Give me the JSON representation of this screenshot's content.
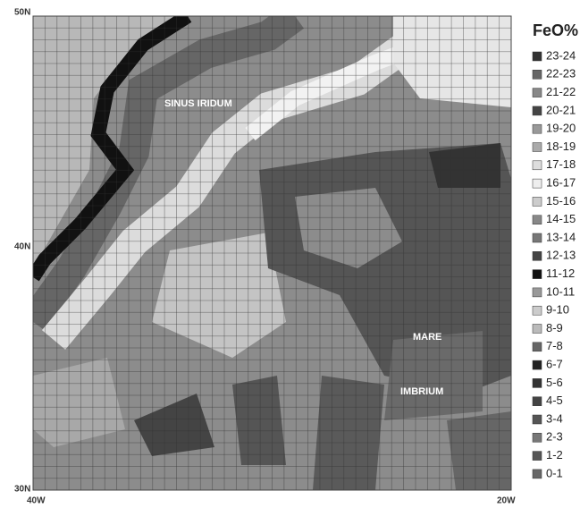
{
  "map": {
    "lat_labels": [
      "50N",
      "40N",
      "30N"
    ],
    "lon_labels": [
      "40W",
      "20W"
    ],
    "region_labels": [
      "SINUS IRIDUM",
      "MARE",
      "IMBRIUM"
    ]
  },
  "legend": {
    "title": "FeO%",
    "items": [
      {
        "label": "23-24",
        "color": "#333333"
      },
      {
        "label": "22-23",
        "color": "#666666"
      },
      {
        "label": "21-22",
        "color": "#888888"
      },
      {
        "label": "20-21",
        "color": "#444444"
      },
      {
        "label": "19-20",
        "color": "#999999"
      },
      {
        "label": "18-19",
        "color": "#aaaaaa"
      },
      {
        "label": "17-18",
        "color": "#dddddd"
      },
      {
        "label": "16-17",
        "color": "#eeeeee"
      },
      {
        "label": "15-16",
        "color": "#cccccc"
      },
      {
        "label": "14-15",
        "color": "#888888"
      },
      {
        "label": "13-14",
        "color": "#777777"
      },
      {
        "label": "12-13",
        "color": "#444444"
      },
      {
        "label": "11-12",
        "color": "#111111"
      },
      {
        "label": "10-11",
        "color": "#999999"
      },
      {
        "label": "9-10",
        "color": "#cccccc"
      },
      {
        "label": "8-9",
        "color": "#bbbbbb"
      },
      {
        "label": "7-8",
        "color": "#666666"
      },
      {
        "label": "6-7",
        "color": "#222222"
      },
      {
        "label": "5-6",
        "color": "#333333"
      },
      {
        "label": "4-5",
        "color": "#444444"
      },
      {
        "label": "3-4",
        "color": "#555555"
      },
      {
        "label": "2-3",
        "color": "#777777"
      },
      {
        "label": "1-2",
        "color": "#555555"
      },
      {
        "label": "0-1",
        "color": "#666666"
      }
    ]
  }
}
